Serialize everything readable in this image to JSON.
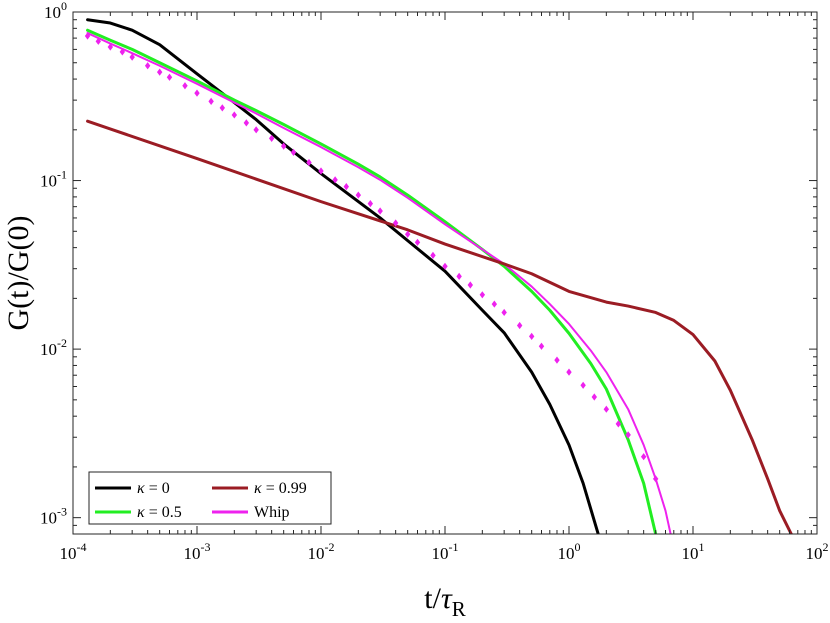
{
  "chart_data": {
    "type": "line",
    "title": "",
    "xlabel": "t/τR",
    "xlabel_main": "t/",
    "xlabel_tau": "τ",
    "xlabel_sub": "R",
    "ylabel": "G(t)/G(0)",
    "xscale": "log",
    "yscale": "log",
    "xlim": [
      0.0001,
      100
    ],
    "ylim": [
      0.0008,
      1
    ],
    "x_ticks": [
      {
        "value": 0.0001,
        "base": "10",
        "exp": "-4"
      },
      {
        "value": 0.001,
        "base": "10",
        "exp": "-3"
      },
      {
        "value": 0.01,
        "base": "10",
        "exp": "-2"
      },
      {
        "value": 0.1,
        "base": "10",
        "exp": "-1"
      },
      {
        "value": 1,
        "base": "10",
        "exp": "0"
      },
      {
        "value": 10,
        "base": "10",
        "exp": "1"
      },
      {
        "value": 100,
        "base": "10",
        "exp": "2"
      }
    ],
    "y_ticks": [
      {
        "value": 0.001,
        "base": "10",
        "exp": "-3"
      },
      {
        "value": 0.01,
        "base": "10",
        "exp": "-2"
      },
      {
        "value": 0.1,
        "base": "10",
        "exp": "-1"
      },
      {
        "value": 1,
        "base": "10",
        "exp": "0"
      }
    ],
    "grid": false,
    "legend_position": "bottom-left",
    "series": [
      {
        "name": "κ = 0",
        "legend_symbol": "κ",
        "legend_value": " = 0",
        "color": "#000000",
        "style": "line",
        "x": [
          0.000131,
          0.0002,
          0.0003,
          0.0005,
          0.001,
          0.002,
          0.003,
          0.005,
          0.01,
          0.02,
          0.03,
          0.05,
          0.1,
          0.2,
          0.3,
          0.5,
          0.7,
          1.0,
          1.3,
          1.72
        ],
        "y": [
          0.9,
          0.86,
          0.78,
          0.64,
          0.43,
          0.29,
          0.23,
          0.165,
          0.11,
          0.075,
          0.06,
          0.044,
          0.029,
          0.017,
          0.0125,
          0.0073,
          0.0047,
          0.0027,
          0.0016,
          0.0008
        ]
      },
      {
        "name": "κ = 0.5",
        "legend_symbol": "κ",
        "legend_value": " = 0.5",
        "color": "#22ee22",
        "style": "line",
        "x": [
          0.000131,
          0.0002,
          0.0003,
          0.0005,
          0.001,
          0.002,
          0.003,
          0.005,
          0.01,
          0.02,
          0.03,
          0.05,
          0.1,
          0.2,
          0.3,
          0.5,
          0.7,
          1.0,
          1.5,
          2.0,
          3.0,
          4.0,
          5.0
        ],
        "y": [
          0.78,
          0.68,
          0.6,
          0.5,
          0.39,
          0.3,
          0.26,
          0.215,
          0.165,
          0.125,
          0.105,
          0.082,
          0.057,
          0.039,
          0.031,
          0.022,
          0.017,
          0.0124,
          0.0082,
          0.0058,
          0.0029,
          0.0016,
          0.0008
        ]
      },
      {
        "name": "Whip",
        "legend_symbol": "",
        "legend_value": "Whip",
        "color": "#ee22ee",
        "style": "line",
        "x": [
          0.000131,
          0.0002,
          0.0003,
          0.0005,
          0.001,
          0.002,
          0.003,
          0.005,
          0.01,
          0.02,
          0.03,
          0.05,
          0.1,
          0.2,
          0.3,
          0.5,
          0.7,
          1.0,
          1.5,
          2.0,
          3.0,
          4.0,
          5.0,
          6.0,
          6.6
        ],
        "y": [
          0.75,
          0.65,
          0.57,
          0.48,
          0.375,
          0.29,
          0.25,
          0.205,
          0.158,
          0.12,
          0.101,
          0.079,
          0.055,
          0.039,
          0.032,
          0.0235,
          0.0185,
          0.0141,
          0.0098,
          0.0073,
          0.0044,
          0.0027,
          0.0017,
          0.0011,
          0.0008
        ]
      },
      {
        "name": "κ = 0.99",
        "legend_symbol": "κ",
        "legend_value": " = 0.99",
        "color": "#9b1c24",
        "style": "line",
        "x": [
          0.000131,
          0.001,
          0.01,
          0.05,
          0.1,
          0.3,
          0.5,
          1.0,
          2.0,
          3.0,
          5.0,
          7.0,
          10.0,
          15.0,
          20.0,
          30.0,
          40.0,
          50.0,
          62.0
        ],
        "y": [
          0.225,
          0.135,
          0.075,
          0.051,
          0.042,
          0.032,
          0.028,
          0.022,
          0.019,
          0.018,
          0.0165,
          0.0148,
          0.0122,
          0.0085,
          0.0057,
          0.0029,
          0.0017,
          0.0011,
          0.0008
        ]
      },
      {
        "name": "",
        "legend_symbol": "",
        "legend_value": "",
        "color": "#ee22ee",
        "style": "markers",
        "marker": "diamond",
        "x": [
          0.000131,
          0.00016,
          0.0002,
          0.00025,
          0.0003,
          0.0004,
          0.0005,
          0.0006,
          0.0008,
          0.001,
          0.0013,
          0.0016,
          0.002,
          0.0025,
          0.003,
          0.004,
          0.005,
          0.006,
          0.008,
          0.01,
          0.013,
          0.016,
          0.02,
          0.025,
          0.03,
          0.04,
          0.05,
          0.06,
          0.08,
          0.1,
          0.13,
          0.16,
          0.2,
          0.25,
          0.3,
          0.4,
          0.5,
          0.6,
          0.8,
          1.0,
          1.3,
          1.6,
          2.0,
          2.5,
          3.0,
          4.0,
          5.0
        ],
        "y": [
          0.72,
          0.67,
          0.62,
          0.58,
          0.54,
          0.48,
          0.44,
          0.41,
          0.365,
          0.33,
          0.295,
          0.27,
          0.245,
          0.22,
          0.2,
          0.178,
          0.16,
          0.147,
          0.128,
          0.114,
          0.101,
          0.092,
          0.082,
          0.073,
          0.066,
          0.056,
          0.048,
          0.043,
          0.036,
          0.031,
          0.027,
          0.024,
          0.021,
          0.0185,
          0.0165,
          0.0138,
          0.0119,
          0.0104,
          0.0086,
          0.0073,
          0.0061,
          0.0052,
          0.0044,
          0.0036,
          0.0031,
          0.0023,
          0.0017
        ]
      }
    ]
  }
}
